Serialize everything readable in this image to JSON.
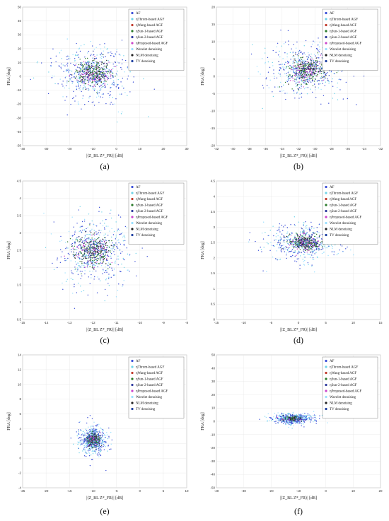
{
  "legend": [
    {
      "label": "AF",
      "color": "#3b4fd8"
    },
    {
      "label": "ηThrom-based AGF",
      "color": "#6fd3e8"
    },
    {
      "label": "ηWang-based AGF",
      "color": "#c0392b"
    },
    {
      "label": "ηSun-1-based AGF",
      "color": "#2a7a2a"
    },
    {
      "label": "ηSun-2-based AGF",
      "color": "#2f3b9e"
    },
    {
      "label": "ηProposed-based AGF",
      "color": "#cc44cc"
    },
    {
      "label": "Wavelet denoising",
      "color": "#9adfff"
    },
    {
      "label": "NLM denoising",
      "color": "#222222"
    },
    {
      "label": "TV denoising",
      "color": "#1f3fa0"
    }
  ],
  "chart_data": [
    {
      "panel": "(a)",
      "type": "scatter",
      "xlabel": "|⟨Z_BL Z*_FR⟩| [dB]",
      "ylabel": "FRA [deg]",
      "xlim": [
        -40,
        30
      ],
      "ylim": [
        -50,
        50
      ],
      "xticks": [
        -40,
        -30,
        -20,
        -10,
        0,
        10,
        20,
        30
      ],
      "yticks": [
        -50,
        -40,
        -30,
        -20,
        -10,
        0,
        10,
        20,
        30,
        40,
        50
      ],
      "cluster": {
        "cx": -10,
        "cy": 2,
        "sx": 8,
        "sy": 10
      }
    },
    {
      "panel": "(b)",
      "type": "scatter",
      "xlabel": "|⟨Z_BL Z*_FR⟩| [dB]",
      "ylabel": "FRA [deg]",
      "xlim": [
        -42,
        -22
      ],
      "ylim": [
        -20,
        20
      ],
      "xticks": [
        -42,
        -40,
        -38,
        -36,
        -34,
        -32,
        -30,
        -28,
        -26,
        -24,
        -22
      ],
      "yticks": [
        -20,
        -15,
        -10,
        -5,
        0,
        5,
        10,
        15,
        20
      ],
      "cluster": {
        "cx": -31,
        "cy": 2,
        "sx": 2.5,
        "sy": 4
      }
    },
    {
      "panel": "(c)",
      "type": "scatter",
      "xlabel": "|⟨Z_BL Z*_FR⟩| [dB]",
      "ylabel": "FRA [deg]",
      "xlim": [
        -15,
        -8
      ],
      "ylim": [
        0.5,
        4.5
      ],
      "xticks": [
        -15,
        -14,
        -13,
        -12,
        -11,
        -10,
        -9,
        -8
      ],
      "yticks": [
        0.5,
        1,
        1.5,
        2,
        2.5,
        3,
        3.5,
        4,
        4.5
      ],
      "cluster": {
        "cx": -12,
        "cy": 2.5,
        "sx": 0.8,
        "sy": 0.5
      }
    },
    {
      "panel": "(d)",
      "type": "scatter",
      "xlabel": "|⟨Z_BL Z*_FR⟩| [dB]",
      "ylabel": "FRA [deg]",
      "xlim": [
        -15,
        15
      ],
      "ylim": [
        0,
        4.5
      ],
      "xticks": [
        -15,
        -10,
        -5,
        0,
        5,
        10,
        15
      ],
      "yticks": [
        0,
        0.5,
        1,
        1.5,
        2,
        2.5,
        3,
        3.5,
        4,
        4.5
      ],
      "cluster": {
        "cx": 1,
        "cy": 2.5,
        "sx": 3.5,
        "sy": 0.3
      }
    },
    {
      "panel": "(e)",
      "type": "scatter",
      "xlabel": "|⟨Z_BL Z*_FR⟩| [dB]",
      "ylabel": "FRA [deg]",
      "xlim": [
        -25,
        10
      ],
      "ylim": [
        -4,
        14
      ],
      "xticks": [
        -25,
        -20,
        -15,
        -10,
        -5,
        0,
        5,
        10
      ],
      "yticks": [
        -4,
        -2,
        0,
        2,
        4,
        6,
        8,
        10,
        12,
        14
      ],
      "cluster": {
        "cx": -10,
        "cy": 2.5,
        "sx": 1.5,
        "sy": 1
      }
    },
    {
      "panel": "(f)",
      "type": "scatter",
      "xlabel": "|⟨Z_BL Z*_FR⟩| [dB]",
      "ylabel": "FRA [deg]",
      "xlim": [
        -40,
        20
      ],
      "ylim": [
        -50,
        50
      ],
      "xticks": [
        -40,
        -30,
        -20,
        -10,
        0,
        10,
        20
      ],
      "yticks": [
        -50,
        -40,
        -30,
        -20,
        -10,
        0,
        10,
        20,
        30,
        40,
        50
      ],
      "cluster": {
        "cx": -12,
        "cy": 2,
        "sx": 4,
        "sy": 2
      }
    }
  ]
}
